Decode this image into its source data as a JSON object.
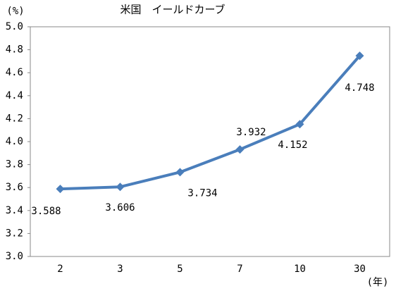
{
  "chart_data": {
    "type": "line",
    "title": "米国　イールドカーブ",
    "y_label": "(%)",
    "x_label": "(年)",
    "categories": [
      "2",
      "3",
      "5",
      "7",
      "10",
      "30"
    ],
    "series": [
      {
        "name": "米国",
        "color": "#4a7ebb",
        "values": [
          3.588,
          3.606,
          3.734,
          3.932,
          4.152,
          4.748
        ]
      }
    ],
    "ylim": [
      3.0,
      5.0
    ],
    "yticks": [
      {
        "value": 3.0,
        "label": "3.0"
      },
      3.2,
      3.4,
      3.6,
      3.8,
      {
        "value": 4.0,
        "label": "4.0"
      },
      4.2,
      4.4,
      4.6,
      4.8,
      {
        "value": 5.0,
        "label": "5.0"
      }
    ],
    "grid": false
  }
}
